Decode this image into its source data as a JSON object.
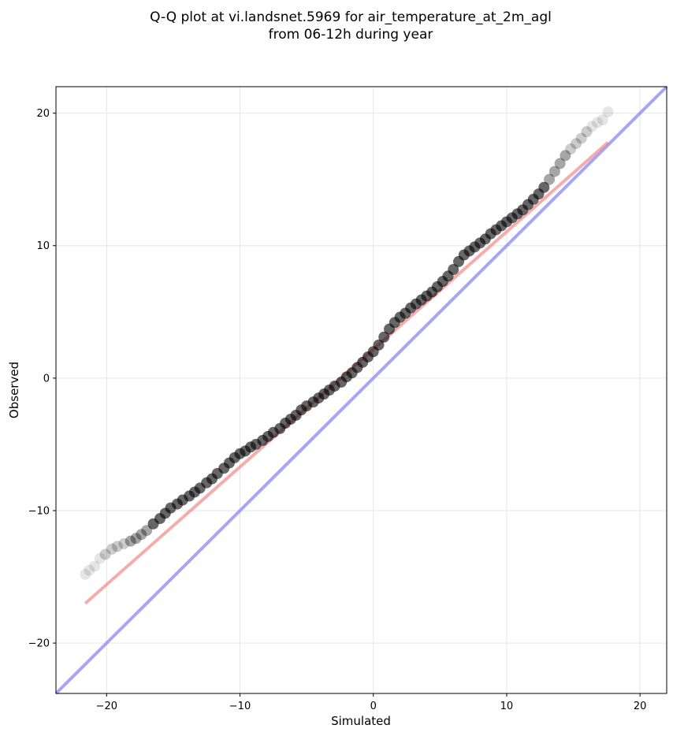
{
  "chart_data": {
    "type": "scatter",
    "title_lines": [
      "Q-Q plot at vi.landsnet.5969 for air_temperature_at_2m_agl",
      "from 06-12h during year"
    ],
    "xlabel": "Simulated",
    "ylabel": "Observed",
    "xlim": [
      -23.8,
      22
    ],
    "ylim": [
      -23.8,
      22
    ],
    "xticks": [
      -20,
      -10,
      0,
      10,
      20
    ],
    "yticks": [
      -20,
      -10,
      0,
      10,
      20
    ],
    "xtick_labels": [
      "−20",
      "−10",
      "0",
      "10",
      "20"
    ],
    "ytick_labels": [
      "−20",
      "−10",
      "0",
      "10",
      "20"
    ],
    "grid": true,
    "colors": {
      "points": "#000000",
      "fit_line": "#f08080",
      "identity_line": "#8080f0",
      "grid": "#e6e6e6"
    },
    "series": [
      {
        "kind": "quantiles",
        "x": [
          -21.6,
          -21.3,
          -20.9,
          -20.5,
          -20.1,
          -19.6,
          -19.2,
          -18.7,
          -18.2,
          -17.8,
          -17.4,
          -17.0,
          -16.5,
          -16.0,
          -15.6,
          -15.2,
          -14.7,
          -14.3,
          -13.8,
          -13.4,
          -13.0,
          -12.5,
          -12.1,
          -11.7,
          -11.2,
          -10.8,
          -10.4,
          -10.0,
          -9.6,
          -9.2,
          -8.8,
          -8.3,
          -7.9,
          -7.5,
          -7.0,
          -6.6,
          -6.2,
          -5.8,
          -5.4,
          -5.0,
          -4.5,
          -4.1,
          -3.7,
          -3.3,
          -2.9,
          -2.4,
          -2.0,
          -1.6,
          -1.2,
          -0.8,
          -0.4,
          0.0,
          0.4,
          0.8,
          1.2,
          1.6,
          2.0,
          2.4,
          2.8,
          3.2,
          3.6,
          4.0,
          4.4,
          4.8,
          5.2,
          5.6,
          6.0,
          6.4,
          6.8,
          7.2,
          7.6,
          8.0,
          8.4,
          8.8,
          9.2,
          9.6,
          10.0,
          10.4,
          10.8,
          11.2,
          11.6,
          12.0,
          12.4,
          12.8,
          13.2,
          13.6,
          14.0,
          14.4,
          14.8,
          15.2,
          15.6,
          16.0,
          16.4,
          16.8,
          17.2,
          17.6
        ],
        "y": [
          -14.8,
          -14.5,
          -14.2,
          -13.6,
          -13.3,
          -12.9,
          -12.7,
          -12.5,
          -12.3,
          -12.1,
          -11.8,
          -11.5,
          -11.0,
          -10.6,
          -10.2,
          -9.8,
          -9.5,
          -9.2,
          -8.9,
          -8.6,
          -8.3,
          -7.9,
          -7.6,
          -7.2,
          -6.8,
          -6.4,
          -6.0,
          -5.7,
          -5.5,
          -5.2,
          -5.0,
          -4.7,
          -4.4,
          -4.1,
          -3.8,
          -3.4,
          -3.1,
          -2.8,
          -2.4,
          -2.1,
          -1.8,
          -1.5,
          -1.2,
          -0.9,
          -0.6,
          -0.3,
          0.1,
          0.4,
          0.8,
          1.2,
          1.6,
          2.0,
          2.5,
          3.1,
          3.7,
          4.2,
          4.6,
          4.9,
          5.3,
          5.6,
          5.9,
          6.2,
          6.5,
          6.9,
          7.3,
          7.7,
          8.2,
          8.8,
          9.3,
          9.6,
          9.9,
          10.2,
          10.5,
          10.9,
          11.2,
          11.5,
          11.8,
          12.1,
          12.4,
          12.7,
          13.1,
          13.5,
          13.9,
          14.4,
          15.0,
          15.6,
          16.2,
          16.8,
          17.3,
          17.7,
          18.1,
          18.6,
          19.0,
          19.3,
          19.5,
          20.1
        ]
      },
      {
        "kind": "fit_line",
        "x": [
          -21.6,
          17.6
        ],
        "y": [
          -17.0,
          17.8
        ]
      },
      {
        "kind": "identity_line",
        "x": [
          -23.8,
          22
        ],
        "y": [
          -23.8,
          22
        ]
      }
    ]
  }
}
